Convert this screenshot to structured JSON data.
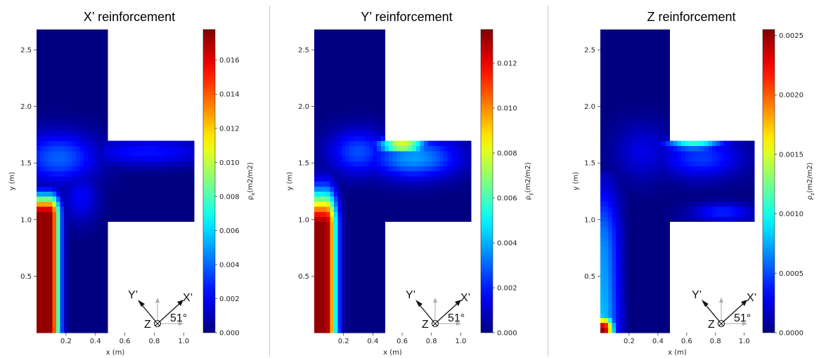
{
  "chart_data": [
    {
      "type": "heatmap",
      "title": "X’ reinforcement",
      "xlabel": "x (m)",
      "ylabel": "y (m)",
      "colorbar_label": "ρx(m2/m2)",
      "colorbar_symbol": "ρ",
      "colorbar_subscript": "x",
      "colorbar_units": "(m2/m2)",
      "colormap": "jet",
      "xlim": [
        0.0,
        1.07
      ],
      "ylim": [
        0.0,
        2.68
      ],
      "xticks": [
        "0.2",
        "0.4",
        "0.6",
        "0.8",
        "1.0"
      ],
      "xtick_values": [
        0.2,
        0.4,
        0.6,
        0.8,
        1.0
      ],
      "yticks": [
        "0.5",
        "1.0",
        "1.5",
        "2.0",
        "2.5"
      ],
      "ytick_values": [
        0.5,
        1.0,
        1.5,
        2.0,
        2.5
      ],
      "clim": [
        0.0,
        0.0178
      ],
      "cbticks": [
        "0.000",
        "0.002",
        "0.004",
        "0.006",
        "0.008",
        "0.010",
        "0.012",
        "0.014",
        "0.016"
      ],
      "cbtick_values": [
        0.0,
        0.002,
        0.004,
        0.006,
        0.008,
        0.01,
        0.012,
        0.014,
        0.016
      ],
      "domain": "T-shaped wall: vertical leg x 0–0.49 m, y 0–2.68 m; horizontal flange x 0.49–1.07 m, y 1.0–1.69 m",
      "features": [
        {
          "desc": "high values along left edge of vertical leg",
          "x": [
            0.0,
            0.2
          ],
          "y": [
            0.0,
            1.3
          ],
          "peak": 0.0178
        },
        {
          "desc": "diffuse band across junction into flange",
          "x": [
            0.0,
            1.07
          ],
          "y": [
            1.35,
            1.75
          ],
          "peak": 0.004
        }
      ],
      "orientation": {
        "angle": "51°",
        "axis1": "X’",
        "axis2": "Y’",
        "axis3": "Z"
      }
    },
    {
      "type": "heatmap",
      "title": "Y’ reinforcement",
      "xlabel": "x (m)",
      "ylabel": "y (m)",
      "colorbar_label": "ρy(m2/m2)",
      "colorbar_symbol": "ρ",
      "colorbar_subscript": "y",
      "colorbar_units": "(m2/m2)",
      "colormap": "jet",
      "xlim": [
        0.0,
        1.07
      ],
      "ylim": [
        0.0,
        2.68
      ],
      "xticks": [
        "0.2",
        "0.4",
        "0.6",
        "0.8",
        "1.0"
      ],
      "xtick_values": [
        0.2,
        0.4,
        0.6,
        0.8,
        1.0
      ],
      "yticks": [
        "0.5",
        "1.0",
        "1.5",
        "2.0",
        "2.5"
      ],
      "ytick_values": [
        0.5,
        1.0,
        1.5,
        2.0,
        2.5
      ],
      "clim": [
        0.0,
        0.0135
      ],
      "cbticks": [
        "0.000",
        "0.002",
        "0.004",
        "0.006",
        "0.008",
        "0.010",
        "0.012"
      ],
      "cbtick_values": [
        0.0,
        0.002,
        0.004,
        0.006,
        0.008,
        0.01,
        0.012
      ],
      "domain": "T-shaped wall: vertical leg x 0–0.49 m, y 0–2.68 m; horizontal flange x 0.49–1.07 m, y 1.0–1.69 m",
      "features": [
        {
          "desc": "high values along left edge of vertical leg",
          "x": [
            0.0,
            0.2
          ],
          "y": [
            0.0,
            1.5
          ],
          "peak": 0.0135
        },
        {
          "desc": "hot spot at top edge of flange near junction",
          "x": [
            0.45,
            0.75
          ],
          "y": [
            1.45,
            1.69
          ],
          "peak": 0.008
        }
      ],
      "orientation": {
        "angle": "51°",
        "axis1": "X’",
        "axis2": "Y’",
        "axis3": "Z"
      }
    },
    {
      "type": "heatmap",
      "title": "Z reinforcement",
      "xlabel": "x (m)",
      "ylabel": "y (m)",
      "colorbar_label": "ρz(m2/m2)",
      "colorbar_symbol": "ρ",
      "colorbar_subscript": "z",
      "colorbar_units": "(m2/m2)",
      "colormap": "jet",
      "xlim": [
        0.0,
        1.07
      ],
      "ylim": [
        0.0,
        2.68
      ],
      "xticks": [
        "0.2",
        "0.4",
        "0.6",
        "0.8",
        "1.0"
      ],
      "xtick_values": [
        0.2,
        0.4,
        0.6,
        0.8,
        1.0
      ],
      "yticks": [
        "0.5",
        "1.0",
        "1.5",
        "2.0",
        "2.5"
      ],
      "ytick_values": [
        0.5,
        1.0,
        1.5,
        2.0,
        2.5
      ],
      "clim": [
        0.0,
        0.00255
      ],
      "cbticks": [
        "0.0000",
        "0.0005",
        "0.0010",
        "0.0015",
        "0.0020",
        "0.0025"
      ],
      "cbtick_values": [
        0.0,
        0.0005,
        0.001,
        0.0015,
        0.002,
        0.0025
      ],
      "domain": "T-shaped wall: vertical leg x 0–0.49 m, y 0–2.68 m; horizontal flange x 0.49–1.07 m, y 1.0–1.69 m",
      "features": [
        {
          "desc": "values along left edge of vertical leg, peak at bottom-left corner",
          "x": [
            0.0,
            0.2
          ],
          "y": [
            0.0,
            1.4
          ],
          "peak": 0.00255
        },
        {
          "desc": "band along top edge of flange",
          "x": [
            0.45,
            0.95
          ],
          "y": [
            1.55,
            1.69
          ],
          "peak": 0.0011
        },
        {
          "desc": "weak band along bottom edge of flange",
          "x": [
            0.6,
            1.07
          ],
          "y": [
            1.0,
            1.2
          ],
          "peak": 0.0005
        }
      ],
      "orientation": {
        "angle": "51°",
        "axis1": "X’",
        "axis2": "Y’",
        "axis3": "Z"
      }
    }
  ]
}
